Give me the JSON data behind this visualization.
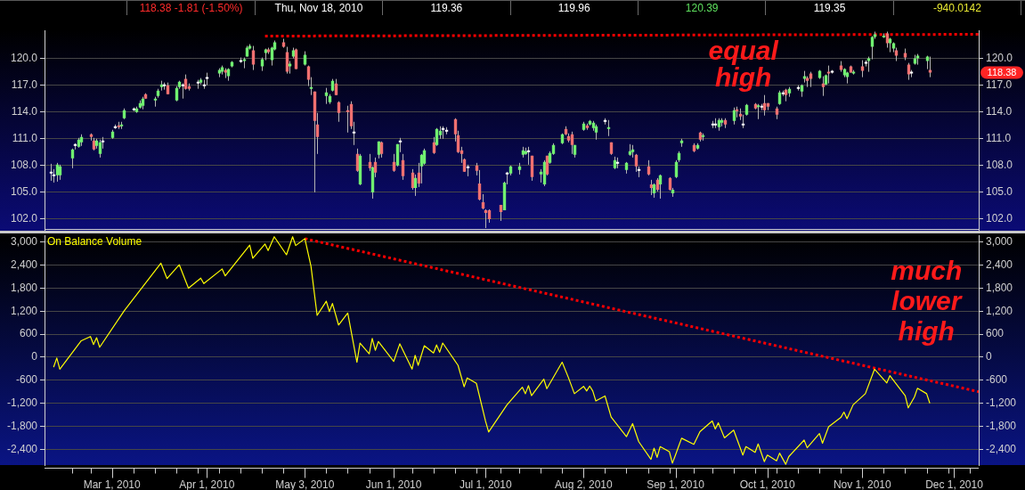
{
  "chart_data": [
    {
      "type": "candlestick",
      "x": [
        "2010-02-09",
        "2010-02-10",
        "2010-02-11",
        "2010-02-12",
        "2010-02-16",
        "2010-02-17",
        "2010-02-18",
        "2010-02-19",
        "2010-02-22",
        "2010-02-23",
        "2010-02-24",
        "2010-02-25",
        "2010-02-26",
        "2010-03-01",
        "2010-03-02",
        "2010-03-03",
        "2010-03-04",
        "2010-03-05",
        "2010-03-08",
        "2010-03-09",
        "2010-03-10",
        "2010-03-11",
        "2010-03-12",
        "2010-03-15",
        "2010-03-16",
        "2010-03-17",
        "2010-03-18",
        "2010-03-19",
        "2010-03-22",
        "2010-03-23",
        "2010-03-24",
        "2010-03-25",
        "2010-03-26",
        "2010-03-29",
        "2010-03-30",
        "2010-03-31",
        "2010-04-01",
        "2010-04-05",
        "2010-04-06",
        "2010-04-07",
        "2010-04-08",
        "2010-04-09",
        "2010-04-12",
        "2010-04-13",
        "2010-04-14",
        "2010-04-15",
        "2010-04-16",
        "2010-04-19",
        "2010-04-20",
        "2010-04-21",
        "2010-04-22",
        "2010-04-23",
        "2010-04-26",
        "2010-04-27",
        "2010-04-28",
        "2010-04-29",
        "2010-04-30",
        "2010-05-03",
        "2010-05-04",
        "2010-05-05",
        "2010-05-06",
        "2010-05-07",
        "2010-05-10",
        "2010-05-11",
        "2010-05-12",
        "2010-05-13",
        "2010-05-14",
        "2010-05-17",
        "2010-05-18",
        "2010-05-19",
        "2010-05-20",
        "2010-05-21",
        "2010-05-24",
        "2010-05-25",
        "2010-05-26",
        "2010-05-27",
        "2010-05-28",
        "2010-06-01",
        "2010-06-02",
        "2010-06-03",
        "2010-06-04",
        "2010-06-07",
        "2010-06-08",
        "2010-06-09",
        "2010-06-10",
        "2010-06-11",
        "2010-06-14",
        "2010-06-15",
        "2010-06-16",
        "2010-06-17",
        "2010-06-18",
        "2010-06-21",
        "2010-06-22",
        "2010-06-23",
        "2010-06-24",
        "2010-06-25",
        "2010-06-28",
        "2010-06-29",
        "2010-06-30",
        "2010-07-01",
        "2010-07-02",
        "2010-07-06",
        "2010-07-07",
        "2010-07-08",
        "2010-07-09",
        "2010-07-12",
        "2010-07-13",
        "2010-07-14",
        "2010-07-15",
        "2010-07-16",
        "2010-07-19",
        "2010-07-20",
        "2010-07-21",
        "2010-07-22",
        "2010-07-23",
        "2010-07-26",
        "2010-07-27",
        "2010-07-28",
        "2010-07-29",
        "2010-07-30",
        "2010-08-02",
        "2010-08-03",
        "2010-08-04",
        "2010-08-05",
        "2010-08-06",
        "2010-08-09",
        "2010-08-10",
        "2010-08-11",
        "2010-08-12",
        "2010-08-13",
        "2010-08-16",
        "2010-08-17",
        "2010-08-18",
        "2010-08-19",
        "2010-08-20",
        "2010-08-23",
        "2010-08-24",
        "2010-08-25",
        "2010-08-26",
        "2010-08-27",
        "2010-08-30",
        "2010-08-31",
        "2010-09-01",
        "2010-09-02",
        "2010-09-03",
        "2010-09-07",
        "2010-09-08",
        "2010-09-09",
        "2010-09-10",
        "2010-09-13",
        "2010-09-14",
        "2010-09-15",
        "2010-09-16",
        "2010-09-17",
        "2010-09-20",
        "2010-09-21",
        "2010-09-22",
        "2010-09-23",
        "2010-09-24",
        "2010-09-27",
        "2010-09-28",
        "2010-09-29",
        "2010-09-30",
        "2010-10-01",
        "2010-10-04",
        "2010-10-05",
        "2010-10-06",
        "2010-10-07",
        "2010-10-08",
        "2010-10-11",
        "2010-10-12",
        "2010-10-13",
        "2010-10-14",
        "2010-10-15",
        "2010-10-18",
        "2010-10-19",
        "2010-10-20",
        "2010-10-21",
        "2010-10-22",
        "2010-10-25",
        "2010-10-26",
        "2010-10-27",
        "2010-10-28",
        "2010-10-29",
        "2010-11-01",
        "2010-11-02",
        "2010-11-03",
        "2010-11-04",
        "2010-11-05",
        "2010-11-08",
        "2010-11-09",
        "2010-11-10",
        "2010-11-11",
        "2010-11-12",
        "2010-11-15",
        "2010-11-16",
        "2010-11-17",
        "2010-11-18",
        "2010-11-19",
        "2010-11-22",
        "2010-11-23"
      ],
      "ohlc": [
        [
          107.2,
          108.2,
          106.3,
          107.2
        ],
        [
          106.9,
          107.6,
          106.1,
          106.9
        ],
        [
          106.9,
          108.3,
          106.2,
          108.1
        ],
        [
          106.9,
          108.1,
          106.4,
          107.9
        ],
        [
          108.8,
          109.9,
          107.7,
          109.8
        ],
        [
          110.3,
          110.5,
          109.8,
          110.3
        ],
        [
          110.1,
          111.1,
          110.0,
          110.9
        ],
        [
          110.6,
          111.5,
          110.2,
          111.2
        ],
        [
          111.5,
          111.6,
          110.8,
          111.2
        ],
        [
          110.8,
          111.1,
          109.7,
          109.8
        ],
        [
          110.2,
          111.0,
          109.9,
          110.8
        ],
        [
          109.3,
          110.9,
          108.9,
          110.6
        ],
        [
          110.7,
          111.2,
          109.9,
          110.7
        ],
        [
          111.1,
          112.0,
          111.0,
          111.8
        ],
        [
          112.3,
          112.6,
          112.1,
          112.3
        ],
        [
          112.5,
          112.9,
          112.1,
          112.3
        ],
        [
          112.4,
          112.9,
          112.1,
          112.6
        ],
        [
          113.3,
          114.4,
          113.2,
          114.2
        ],
        [
          114.3,
          114.5,
          114.1,
          114.3
        ],
        [
          114.0,
          114.6,
          113.9,
          114.4
        ],
        [
          114.5,
          115.3,
          114.4,
          115.0
        ],
        [
          114.7,
          115.7,
          114.3,
          115.5
        ],
        [
          116.0,
          116.1,
          115.5,
          115.5
        ],
        [
          115.3,
          115.7,
          114.6,
          115.5
        ],
        [
          115.8,
          116.6,
          115.6,
          116.4
        ],
        [
          116.8,
          117.5,
          116.4,
          117.1
        ],
        [
          117.0,
          117.3,
          116.5,
          117.0
        ],
        [
          117.0,
          117.3,
          116.0,
          116.0
        ],
        [
          115.3,
          116.9,
          115.2,
          116.7
        ],
        [
          116.8,
          117.5,
          116.6,
          117.4
        ],
        [
          117.0,
          117.2,
          115.5,
          117.0
        ],
        [
          117.7,
          118.2,
          116.5,
          116.6
        ],
        [
          116.9,
          117.2,
          116.4,
          116.6
        ],
        [
          117.3,
          117.6,
          116.6,
          117.3
        ],
        [
          117.3,
          117.8,
          117.1,
          117.6
        ],
        [
          117.0,
          117.6,
          116.6,
          117.0
        ],
        [
          117.8,
          118.4,
          117.0,
          117.8
        ],
        [
          118.3,
          118.9,
          117.9,
          118.7
        ],
        [
          118.5,
          119.2,
          118.2,
          119.0
        ],
        [
          118.7,
          118.9,
          117.8,
          118.4
        ],
        [
          118.0,
          118.9,
          117.5,
          118.8
        ],
        [
          119.1,
          119.7,
          119.0,
          119.6
        ],
        [
          119.7,
          120.1,
          119.5,
          119.7
        ],
        [
          119.7,
          120.1,
          118.9,
          119.9
        ],
        [
          120.2,
          121.4,
          120.2,
          121.2
        ],
        [
          121.1,
          121.6,
          121.0,
          121.4
        ],
        [
          120.9,
          121.4,
          118.7,
          119.3
        ],
        [
          119.1,
          120.1,
          118.6,
          119.9
        ],
        [
          120.6,
          121.1,
          119.8,
          121.0
        ],
        [
          121.0,
          121.2,
          120.5,
          120.7
        ],
        [
          119.8,
          121.3,
          119.2,
          121.2
        ],
        [
          121.0,
          122.0,
          120.9,
          121.8
        ],
        [
          121.8,
          122.2,
          121.2,
          121.3
        ],
        [
          120.7,
          121.3,
          118.3,
          118.5
        ],
        [
          119.1,
          119.7,
          118.3,
          119.4
        ],
        [
          120.2,
          121.2,
          120.0,
          120.9
        ],
        [
          121.0,
          121.1,
          118.8,
          118.8
        ],
        [
          119.3,
          120.8,
          119.2,
          120.4
        ],
        [
          119.1,
          119.2,
          116.9,
          117.6
        ],
        [
          116.6,
          117.9,
          115.9,
          116.8
        ],
        [
          116.3,
          116.3,
          105.0,
          113.0
        ],
        [
          112.6,
          113.9,
          109.3,
          111.2
        ],
        [
          115.8,
          116.7,
          114.9,
          116.2
        ],
        [
          115.1,
          116.0,
          114.9,
          115.8
        ],
        [
          116.4,
          117.7,
          116.3,
          117.5
        ],
        [
          117.2,
          117.7,
          115.9,
          115.9
        ],
        [
          115.1,
          115.2,
          112.9,
          113.9
        ],
        [
          114.2,
          114.7,
          111.7,
          114.0
        ],
        [
          114.9,
          115.2,
          112.1,
          112.4
        ],
        [
          111.7,
          112.9,
          110.3,
          111.7
        ],
        [
          109.3,
          109.9,
          107.3,
          107.4
        ],
        [
          105.9,
          109.3,
          105.8,
          109.1
        ],
        [
          108.4,
          109.3,
          107.4,
          107.7
        ],
        [
          105.0,
          107.9,
          104.3,
          107.8
        ],
        [
          108.4,
          108.9,
          106.7,
          107.2
        ],
        [
          109.2,
          110.7,
          108.8,
          110.7
        ],
        [
          110.6,
          110.7,
          108.9,
          109.3
        ],
        [
          108.4,
          109.3,
          107.3,
          107.4
        ],
        [
          108.0,
          110.4,
          107.9,
          110.4
        ],
        [
          110.7,
          111.1,
          109.5,
          110.7
        ],
        [
          108.6,
          109.3,
          106.4,
          106.8
        ],
        [
          107.2,
          107.6,
          105.3,
          105.5
        ],
        [
          105.5,
          107.0,
          104.6,
          106.6
        ],
        [
          107.2,
          108.3,
          105.6,
          106.0
        ],
        [
          107.9,
          109.3,
          106.0,
          109.2
        ],
        [
          108.2,
          109.9,
          108.1,
          109.7
        ],
        [
          110.6,
          111.2,
          109.3,
          109.4
        ],
        [
          110.3,
          112.2,
          110.2,
          112.1
        ],
        [
          111.4,
          112.4,
          111.0,
          111.9
        ],
        [
          112.1,
          112.4,
          111.0,
          112.1
        ],
        [
          111.9,
          112.3,
          111.5,
          111.9
        ],
        [
          113.2,
          113.3,
          110.7,
          111.5
        ],
        [
          111.4,
          111.9,
          109.4,
          109.5
        ],
        [
          109.7,
          110.1,
          108.3,
          109.3
        ],
        [
          108.7,
          108.8,
          107.3,
          107.3
        ],
        [
          107.8,
          108.1,
          106.8,
          107.8
        ],
        [
          108.0,
          108.3,
          106.9,
          107.4
        ],
        [
          106.0,
          107.5,
          104.1,
          104.2
        ],
        [
          103.9,
          104.8,
          103.1,
          103.2
        ],
        [
          103.0,
          103.1,
          101.0,
          102.7
        ],
        [
          103.0,
          103.1,
          101.6,
          102.0
        ],
        [
          103.6,
          103.6,
          101.8,
          102.8
        ],
        [
          103.0,
          106.2,
          103.0,
          106.1
        ],
        [
          107.1,
          107.3,
          105.9,
          107.1
        ],
        [
          107.1,
          108.0,
          106.9,
          107.9
        ],
        [
          107.5,
          108.3,
          107.0,
          107.9
        ],
        [
          109.2,
          110.1,
          108.9,
          109.7
        ],
        [
          109.3,
          110.0,
          109.2,
          109.6
        ],
        [
          109.6,
          110.1,
          108.1,
          109.6
        ],
        [
          109.1,
          109.1,
          106.3,
          106.7
        ],
        [
          107.0,
          107.6,
          106.1,
          107.3
        ],
        [
          105.9,
          108.6,
          105.7,
          108.4
        ],
        [
          109.1,
          109.1,
          106.9,
          107.0
        ],
        [
          108.3,
          109.6,
          108.2,
          109.4
        ],
        [
          109.3,
          110.5,
          109.2,
          110.3
        ],
        [
          110.5,
          111.6,
          110.4,
          111.5
        ],
        [
          112.1,
          112.4,
          111.4,
          111.5
        ],
        [
          111.3,
          111.6,
          110.6,
          110.8
        ],
        [
          111.5,
          111.8,
          109.3,
          110.3
        ],
        [
          109.2,
          110.3,
          108.9,
          110.3
        ],
        [
          112.0,
          112.9,
          111.9,
          112.7
        ],
        [
          112.5,
          112.7,
          112.0,
          112.2
        ],
        [
          112.6,
          113.1,
          112.5,
          113.0
        ],
        [
          112.2,
          113.0,
          111.9,
          112.8
        ],
        [
          111.7,
          112.6,
          110.9,
          112.4
        ],
        [
          113.0,
          113.3,
          112.6,
          113.0
        ],
        [
          112.1,
          113.1,
          111.3,
          112.3
        ],
        [
          110.6,
          110.6,
          109.2,
          109.3
        ],
        [
          107.7,
          109.0,
          107.6,
          108.6
        ],
        [
          108.3,
          108.9,
          107.7,
          108.3
        ],
        [
          107.5,
          108.4,
          107.1,
          108.3
        ],
        [
          109.2,
          110.4,
          109.1,
          109.6
        ],
        [
          109.5,
          110.3,
          108.9,
          109.8
        ],
        [
          109.2,
          109.3,
          107.3,
          107.9
        ],
        [
          107.5,
          107.9,
          106.7,
          107.5
        ],
        [
          107.9,
          108.6,
          106.9,
          107.0
        ],
        [
          105.9,
          106.4,
          104.7,
          105.5
        ],
        [
          104.9,
          106.0,
          104.4,
          105.9
        ],
        [
          106.4,
          106.6,
          105.1,
          105.3
        ],
        [
          105.9,
          107.0,
          104.3,
          106.9
        ],
        [
          106.6,
          106.7,
          105.2,
          105.3
        ],
        [
          104.9,
          105.5,
          104.5,
          105.3
        ],
        [
          106.7,
          108.6,
          106.6,
          108.4
        ],
        [
          108.6,
          109.6,
          108.4,
          109.4
        ],
        [
          110.5,
          111.0,
          110.1,
          110.8
        ],
        [
          110.3,
          110.5,
          109.5,
          109.6
        ],
        [
          109.9,
          110.5,
          109.8,
          110.3
        ],
        [
          111.7,
          111.8,
          110.7,
          110.9
        ],
        [
          111.2,
          111.6,
          110.8,
          111.4
        ],
        [
          112.6,
          113.0,
          112.2,
          112.6
        ],
        [
          112.6,
          113.3,
          112.2,
          112.6
        ],
        [
          112.3,
          113.3,
          111.9,
          113.1
        ],
        [
          112.8,
          113.3,
          112.4,
          113.1
        ],
        [
          113.1,
          113.3,
          112.2,
          112.6
        ],
        [
          113.0,
          114.5,
          112.6,
          114.2
        ],
        [
          114.3,
          114.6,
          113.4,
          114.1
        ],
        [
          113.8,
          114.4,
          113.1,
          113.5
        ],
        [
          112.6,
          113.7,
          112.2,
          112.6
        ],
        [
          113.7,
          114.9,
          113.6,
          114.8
        ],
        [
          114.9,
          115.0,
          114.3,
          114.4
        ],
        [
          114.6,
          114.9,
          113.2,
          114.7
        ],
        [
          114.6,
          114.9,
          114.2,
          114.6
        ],
        [
          115.0,
          115.9,
          113.6,
          114.2
        ],
        [
          115.0,
          115.0,
          114.2,
          114.6
        ],
        [
          114.4,
          114.6,
          113.2,
          113.7
        ],
        [
          114.9,
          116.4,
          114.8,
          116.2
        ],
        [
          116.1,
          116.4,
          115.8,
          116.1
        ],
        [
          116.5,
          116.6,
          115.2,
          115.9
        ],
        [
          116.1,
          116.8,
          115.7,
          116.6
        ],
        [
          116.7,
          117.0,
          116.4,
          116.7
        ],
        [
          116.3,
          117.1,
          115.7,
          117.0
        ],
        [
          117.7,
          118.6,
          117.3,
          118.0
        ],
        [
          117.8,
          118.0,
          116.8,
          117.5
        ],
        [
          118.3,
          118.5,
          116.8,
          117.7
        ],
        [
          117.8,
          118.7,
          117.7,
          118.6
        ],
        [
          117.2,
          118.0,
          115.8,
          116.8
        ],
        [
          117.1,
          118.2,
          117.0,
          118.1
        ],
        [
          118.5,
          119.2,
          117.2,
          118.3
        ],
        [
          118.5,
          118.7,
          118.3,
          118.5
        ],
        [
          119.2,
          119.7,
          118.5,
          118.7
        ],
        [
          118.1,
          118.9,
          117.9,
          118.8
        ],
        [
          117.9,
          118.5,
          117.2,
          118.4
        ],
        [
          119.1,
          119.2,
          118.4,
          118.4
        ],
        [
          118.3,
          118.7,
          118.2,
          118.5
        ],
        [
          119.1,
          119.8,
          117.9,
          118.6
        ],
        [
          119.5,
          119.8,
          119.1,
          119.5
        ],
        [
          119.7,
          120.2,
          118.5,
          120.0
        ],
        [
          121.3,
          122.5,
          119.9,
          122.4
        ],
        [
          122.4,
          123.0,
          122.2,
          122.7
        ],
        [
          122.4,
          122.8,
          122.3,
          122.5
        ],
        [
          122.8,
          123.0,
          121.2,
          121.7
        ],
        [
          121.7,
          122.3,
          120.7,
          122.2
        ],
        [
          121.1,
          121.8,
          120.7,
          121.7
        ],
        [
          120.9,
          121.2,
          119.7,
          120.3
        ],
        [
          120.6,
          121.1,
          119.8,
          120.1
        ],
        [
          119.3,
          119.5,
          117.6,
          118.2
        ],
        [
          118.4,
          118.7,
          117.9,
          118.4
        ],
        [
          119.4,
          120.4,
          119.3,
          120.0
        ],
        [
          120.0,
          120.5,
          119.3,
          120.3
        ],
        [
          119.7,
          120.3,
          118.8,
          120.2
        ],
        [
          118.7,
          120.2,
          117.9,
          118.4
        ]
      ],
      "colors": [
        "#ffffff",
        "#ffffff",
        "#70f070",
        "#70f070",
        "#70f070",
        "#ffffff",
        "#70f070",
        "#70f070",
        "#f07070",
        "#f07070",
        "#70f070",
        "#70f070",
        "#ffffff",
        "#70f070",
        "#ffffff",
        "#f07070",
        "#70f070",
        "#70f070",
        "#ffffff",
        "#70f070",
        "#70f070",
        "#70f070",
        "#f07070",
        "#70f070",
        "#70f070",
        "#70f070",
        "#ffffff",
        "#f07070",
        "#70f070",
        "#70f070",
        "#ffffff",
        "#f07070",
        "#f07070",
        "#ffffff",
        "#70f070",
        "#ffffff",
        "#ffffff",
        "#70f070",
        "#70f070",
        "#f07070",
        "#70f070",
        "#70f070",
        "#ffffff",
        "#70f070",
        "#70f070",
        "#70f070",
        "#f07070",
        "#70f070",
        "#70f070",
        "#f07070",
        "#70f070",
        "#70f070",
        "#f07070",
        "#f07070",
        "#70f070",
        "#70f070",
        "#f07070",
        "#70f070",
        "#f07070",
        "#70f070",
        "#f07070",
        "#f07070",
        "#70f070",
        "#70f070",
        "#70f070",
        "#f07070",
        "#f07070",
        "#f07070",
        "#f07070",
        "#ffffff",
        "#f07070",
        "#70f070",
        "#f07070",
        "#70f070",
        "#f07070",
        "#70f070",
        "#f07070",
        "#f07070",
        "#70f070",
        "#ffffff",
        "#f07070",
        "#f07070",
        "#70f070",
        "#f07070",
        "#70f070",
        "#70f070",
        "#f07070",
        "#70f070",
        "#70f070",
        "#ffffff",
        "#ffffff",
        "#f07070",
        "#f07070",
        "#f07070",
        "#f07070",
        "#ffffff",
        "#f07070",
        "#f07070",
        "#f07070",
        "#f07070",
        "#f07070",
        "#f07070",
        "#70f070",
        "#ffffff",
        "#70f070",
        "#70f070",
        "#70f070",
        "#70f070",
        "#ffffff",
        "#f07070",
        "#70f070",
        "#70f070",
        "#f07070",
        "#70f070",
        "#70f070",
        "#70f070",
        "#f07070",
        "#f07070",
        "#f07070",
        "#70f070",
        "#70f070",
        "#f07070",
        "#70f070",
        "#70f070",
        "#70f070",
        "#ffffff",
        "#70f070",
        "#f07070",
        "#70f070",
        "#ffffff",
        "#70f070",
        "#70f070",
        "#70f070",
        "#f07070",
        "#ffffff",
        "#f07070",
        "#f07070",
        "#70f070",
        "#f07070",
        "#70f070",
        "#f07070",
        "#70f070",
        "#70f070",
        "#70f070",
        "#70f070",
        "#f07070",
        "#70f070",
        "#f07070",
        "#70f070",
        "#ffffff",
        "#ffffff",
        "#70f070",
        "#70f070",
        "#f07070",
        "#70f070",
        "#f07070",
        "#f07070",
        "#ffffff",
        "#70f070",
        "#f07070",
        "#70f070",
        "#ffffff",
        "#f07070",
        "#f07070",
        "#f07070",
        "#70f070",
        "#ffffff",
        "#f07070",
        "#70f070",
        "#ffffff",
        "#70f070",
        "#70f070",
        "#f07070",
        "#f07070",
        "#70f070",
        "#f07070",
        "#70f070",
        "#f07070",
        "#ffffff",
        "#f07070",
        "#70f070",
        "#70f070",
        "#f07070",
        "#70f070",
        "#f07070",
        "#ffffff",
        "#70f070",
        "#70f070",
        "#70f070",
        "#70f070",
        "#f07070",
        "#70f070",
        "#70f070",
        "#f07070",
        "#f07070",
        "#f07070",
        "#ffffff",
        "#70f070",
        "#70f070",
        "#70f070",
        "#f07070"
      ],
      "series": [
        {
          "type": "line",
          "color": "#ff0000",
          "line_style": "dotted",
          "x": [
            "2010-04-20",
            "2010-12-09"
          ],
          "values": [
            122.5,
            122.7
          ]
        }
      ],
      "xlim": [
        "2010-02-07",
        "2010-12-09"
      ],
      "ylim": [
        100.8,
        123.1
      ],
      "yticks": [
        {
          "value": 102,
          "label": "102.0"
        },
        {
          "value": 105,
          "label": "105.0"
        },
        {
          "value": 108,
          "label": "108.0"
        },
        {
          "value": 111,
          "label": "111.0"
        },
        {
          "value": 114,
          "label": "114.0"
        },
        {
          "value": 117,
          "label": "117.0"
        },
        {
          "value": 120,
          "label": "120.0"
        }
      ],
      "y2lim": [
        100.8,
        123.1
      ],
      "y2ticks": [
        {
          "value": 102,
          "label": "102.0"
        },
        {
          "value": 105,
          "label": "105.0"
        },
        {
          "value": 108,
          "label": "108.0"
        },
        {
          "value": 111,
          "label": "111.0"
        },
        {
          "value": 114,
          "label": "114.0"
        },
        {
          "value": 117,
          "label": "117.0"
        },
        {
          "value": 120,
          "label": "120.0"
        }
      ],
      "grid": "y",
      "tick_labels": "y",
      "marker": "none",
      "annotations": [
        "118.38 -1.81 (-1.50%)",
        "Thu, Nov 18, 2010",
        "119.36",
        "119.96",
        "120.39",
        "119.35",
        "-940.0142",
        "118.38",
        "equal high"
      ]
    },
    {
      "type": "line",
      "series": [
        {
          "name": "On Balance Volume",
          "color": "#ffff00",
          "x": [
            "2010-02-10",
            "2010-02-11",
            "2010-02-12",
            "2010-02-19",
            "2010-02-22",
            "2010-02-23",
            "2010-02-24",
            "2010-02-25",
            "2010-03-05",
            "2010-03-17",
            "2010-03-19",
            "2010-03-23",
            "2010-03-26",
            "2010-03-30",
            "2010-03-31",
            "2010-04-06",
            "2010-04-07",
            "2010-04-15",
            "2010-04-16",
            "2010-04-20",
            "2010-04-21",
            "2010-04-23",
            "2010-04-27",
            "2010-04-29",
            "2010-04-30",
            "2010-05-03",
            "2010-05-05",
            "2010-05-07",
            "2010-05-10",
            "2010-05-11",
            "2010-05-12",
            "2010-05-14",
            "2010-05-17",
            "2010-05-20",
            "2010-05-21",
            "2010-05-24",
            "2010-05-25",
            "2010-05-26",
            "2010-05-27",
            "2010-06-01",
            "2010-06-03",
            "2010-06-07",
            "2010-06-08",
            "2010-06-09",
            "2010-06-11",
            "2010-06-14",
            "2010-06-15",
            "2010-06-16",
            "2010-06-17",
            "2010-06-22",
            "2010-06-24",
            "2010-06-25",
            "2010-06-28",
            "2010-07-01",
            "2010-07-02",
            "2010-07-08",
            "2010-07-13",
            "2010-07-14",
            "2010-07-15",
            "2010-07-16",
            "2010-07-20",
            "2010-07-21",
            "2010-07-26",
            "2010-07-28",
            "2010-07-30",
            "2010-08-02",
            "2010-08-03",
            "2010-08-04",
            "2010-08-05",
            "2010-08-06",
            "2010-08-09",
            "2010-08-11",
            "2010-08-16",
            "2010-08-18",
            "2010-08-20",
            "2010-08-24",
            "2010-08-25",
            "2010-08-26",
            "2010-08-27",
            "2010-08-30",
            "2010-08-31",
            "2010-09-01",
            "2010-09-02",
            "2010-09-03",
            "2010-09-07",
            "2010-09-09",
            "2010-09-13",
            "2010-09-14",
            "2010-09-15",
            "2010-09-17",
            "2010-09-20",
            "2010-09-23",
            "2010-09-24",
            "2010-09-27",
            "2010-09-28",
            "2010-09-30",
            "2010-10-01",
            "2010-10-04",
            "2010-10-05",
            "2010-10-07",
            "2010-10-08",
            "2010-10-13",
            "2010-10-14",
            "2010-10-18",
            "2010-10-19",
            "2010-10-21",
            "2010-10-25",
            "2010-10-26",
            "2010-10-27",
            "2010-10-29",
            "2010-11-02",
            "2010-11-05",
            "2010-11-09",
            "2010-11-10",
            "2010-11-15",
            "2010-11-16",
            "2010-11-18",
            "2010-11-19",
            "2010-11-22",
            "2010-11-23"
          ],
          "values": [
            -250,
            -20,
            -310,
            430,
            540,
            330,
            510,
            260,
            1210,
            2450,
            2050,
            2410,
            1800,
            2060,
            1920,
            2300,
            2120,
            2920,
            2580,
            2950,
            2780,
            3140,
            2670,
            3140,
            2910,
            3090,
            2370,
            1090,
            1460,
            1190,
            1400,
            840,
            1150,
            -130,
            370,
            90,
            490,
            180,
            410,
            -110,
            350,
            -310,
            50,
            -210,
            300,
            110,
            320,
            130,
            370,
            -210,
            -770,
            -540,
            -680,
            -1670,
            -1950,
            -1240,
            -780,
            -950,
            -740,
            -1000,
            -570,
            -820,
            -130,
            -520,
            -950,
            -760,
            -880,
            -750,
            -880,
            -1140,
            -1010,
            -1560,
            -2070,
            -1730,
            -2200,
            -2660,
            -2370,
            -2610,
            -2330,
            -2460,
            -2760,
            -2550,
            -2330,
            -2110,
            -2270,
            -1940,
            -1660,
            -1870,
            -1710,
            -2100,
            -1900,
            -2550,
            -2330,
            -2480,
            -2260,
            -2720,
            -2550,
            -2700,
            -2500,
            -2790,
            -2590,
            -2160,
            -2360,
            -1990,
            -2240,
            -1810,
            -1570,
            -1430,
            -1600,
            -1240,
            -950,
            -310,
            -670,
            -480,
            -1000,
            -1320,
            -1040,
            -810,
            -950,
            -1190
          ]
        },
        {
          "color": "#ff0000",
          "line_style": "dotted",
          "x": [
            "2010-05-03",
            "2010-12-09"
          ],
          "values": [
            3090,
            -900
          ]
        }
      ],
      "xlim": [
        "2010-02-07",
        "2010-12-09"
      ],
      "xticks": [
        {
          "value": "2010-02-16",
          "label": null
        },
        {
          "value": "2010-02-22",
          "label": null
        },
        {
          "value": "2010-03-01",
          "label": "Mar 1, 2010"
        },
        {
          "value": "2010-03-08",
          "label": null
        },
        {
          "value": "2010-03-15",
          "label": null
        },
        {
          "value": "2010-03-22",
          "label": null
        },
        {
          "value": "2010-03-29",
          "label": null
        },
        {
          "value": "2010-04-01",
          "label": "Apr 1, 2010"
        },
        {
          "value": "2010-04-05",
          "label": null
        },
        {
          "value": "2010-04-12",
          "label": null
        },
        {
          "value": "2010-04-19",
          "label": null
        },
        {
          "value": "2010-04-26",
          "label": null
        },
        {
          "value": "2010-05-03",
          "label": "May 3, 2010"
        },
        {
          "value": "2010-05-10",
          "label": null
        },
        {
          "value": "2010-05-17",
          "label": null
        },
        {
          "value": "2010-05-24",
          "label": null
        },
        {
          "value": "2010-06-01",
          "label": "Jun 1, 2010"
        },
        {
          "value": "2010-06-07",
          "label": null
        },
        {
          "value": "2010-06-14",
          "label": null
        },
        {
          "value": "2010-06-21",
          "label": null
        },
        {
          "value": "2010-06-28",
          "label": null
        },
        {
          "value": "2010-07-01",
          "label": "Jul 1, 2010"
        },
        {
          "value": "2010-07-06",
          "label": null
        },
        {
          "value": "2010-07-12",
          "label": null
        },
        {
          "value": "2010-07-19",
          "label": null
        },
        {
          "value": "2010-07-26",
          "label": null
        },
        {
          "value": "2010-08-02",
          "label": "Aug 2, 2010"
        },
        {
          "value": "2010-08-09",
          "label": null
        },
        {
          "value": "2010-08-16",
          "label": null
        },
        {
          "value": "2010-08-23",
          "label": null
        },
        {
          "value": "2010-08-30",
          "label": null
        },
        {
          "value": "2010-09-01",
          "label": "Sep 1, 2010"
        },
        {
          "value": "2010-09-07",
          "label": null
        },
        {
          "value": "2010-09-13",
          "label": null
        },
        {
          "value": "2010-09-20",
          "label": null
        },
        {
          "value": "2010-09-27",
          "label": null
        },
        {
          "value": "2010-10-01",
          "label": "Oct 1, 2010"
        },
        {
          "value": "2010-10-04",
          "label": null
        },
        {
          "value": "2010-10-11",
          "label": null
        },
        {
          "value": "2010-10-18",
          "label": null
        },
        {
          "value": "2010-10-25",
          "label": null
        },
        {
          "value": "2010-11-01",
          "label": "Nov 1, 2010"
        },
        {
          "value": "2010-11-08",
          "label": null
        },
        {
          "value": "2010-11-15",
          "label": null
        },
        {
          "value": "2010-11-22",
          "label": null
        },
        {
          "value": "2010-11-29",
          "label": null
        },
        {
          "value": "2010-12-01",
          "label": "Dec 1, 2010"
        },
        {
          "value": "2010-12-06",
          "label": null
        }
      ],
      "ylim": [
        -2810,
        3180
      ],
      "yticks": [
        {
          "value": -2400,
          "label": "-2,400"
        },
        {
          "value": -1800,
          "label": "-1,800"
        },
        {
          "value": -1200,
          "label": "-1,200"
        },
        -600,
        0,
        600,
        {
          "value": 1200,
          "label": "1,200"
        },
        {
          "value": 1800,
          "label": "1,800"
        },
        {
          "value": 2400,
          "label": "2,400"
        },
        {
          "value": 3000,
          "label": "3,000"
        }
      ],
      "y2lim": [
        -2810,
        3180
      ],
      "y2ticks": [
        {
          "value": -2400,
          "label": "-2,400"
        },
        {
          "value": -1800,
          "label": "-1,800"
        },
        {
          "value": -1200,
          "label": "-1,200"
        },
        -600,
        0,
        600,
        {
          "value": 1200,
          "label": "1,200"
        },
        {
          "value": 1800,
          "label": "1,800"
        },
        {
          "value": 2400,
          "label": "2,400"
        },
        {
          "value": 3000,
          "label": "3,000"
        }
      ],
      "grid": "y",
      "legend": "top left",
      "marker": "none",
      "annotations": [
        "much lower high"
      ]
    }
  ]
}
